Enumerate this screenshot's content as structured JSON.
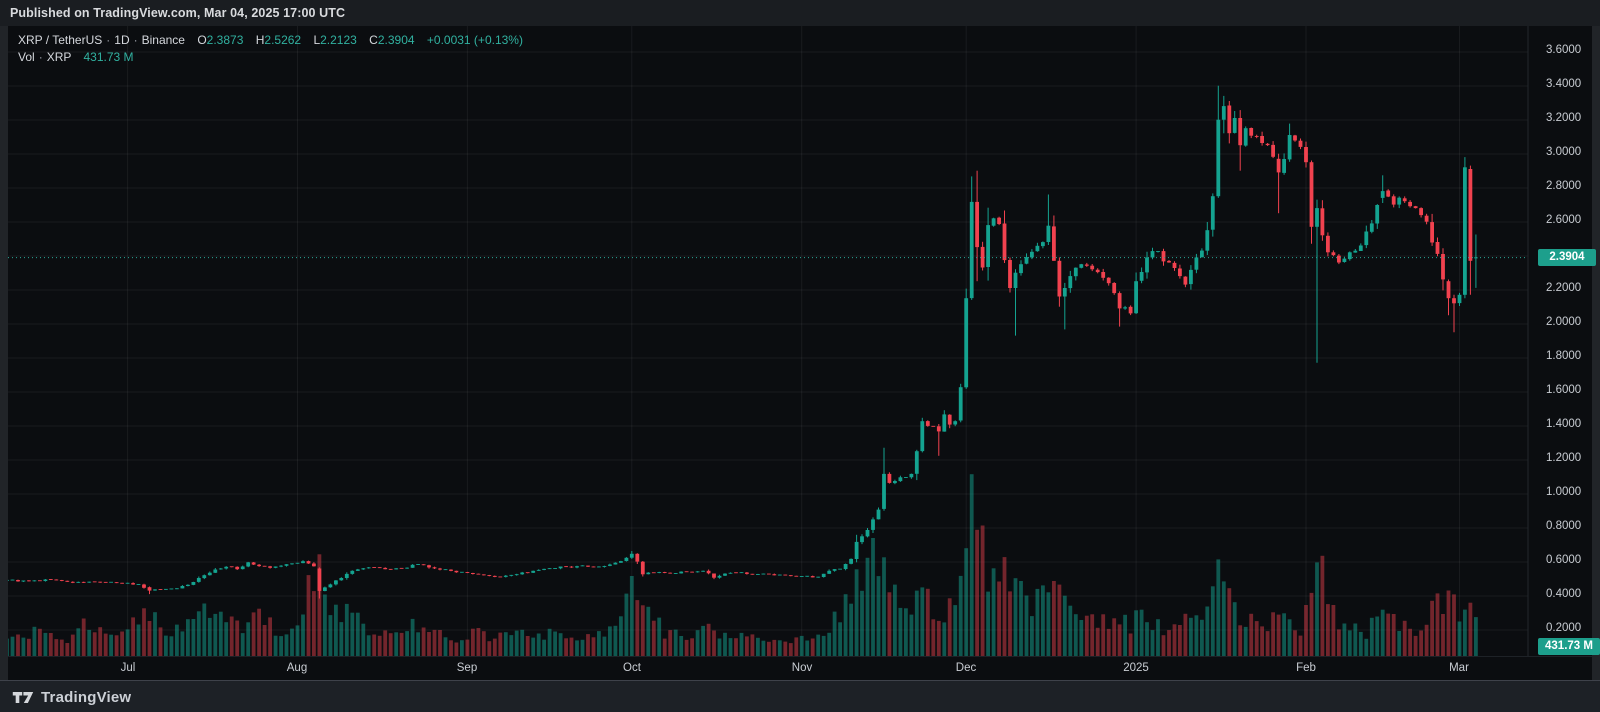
{
  "page": {
    "published_text": "Published on TradingView.com, Mar 04, 2025 17:00 UTC",
    "footer_brand": "TradingView"
  },
  "legend": {
    "line1": {
      "symbol": "XRP / TetherUS",
      "sep1": "·",
      "interval": "1D",
      "sep2": "·",
      "exchange": "Binance",
      "o_l": "O",
      "o_v": "2.3873",
      "h_l": "H",
      "h_v": "2.5262",
      "l_l": "L",
      "l_v": "2.2123",
      "c_l": "C",
      "c_v": "2.3904",
      "change": "+0.0031 (+0.13%)"
    },
    "line2": {
      "label": "Vol",
      "sep": "·",
      "ticker": "XRP",
      "value": "431.73 M"
    }
  },
  "axes": {
    "price_badge": "2.3904",
    "volume_badge": "431.73 M"
  },
  "colors": {
    "up": "#14a390",
    "down": "#f1424f",
    "vol_up": "rgba(20,163,144,0.5)",
    "vol_down": "rgba(241,66,79,0.45)",
    "accent_teal": "#1d9f8c",
    "dotted_line": "#2aa896",
    "grid": "rgba(255,255,255,0.06)",
    "axis_border": "#23272c",
    "axis_text": "#c9cdd3",
    "chart_bg": "#0b0d10"
  },
  "chart_data": {
    "type": "candlestick",
    "title": "XRP / TetherUS · 1D · Binance",
    "x_range": [
      "Jun 2024",
      "Mar 04 2025"
    ],
    "price_axis_visible_range": [
      0.15,
      3.72
    ],
    "grid_levels": [
      3.6,
      3.4,
      3.2,
      3.0,
      2.8,
      2.6,
      2.4,
      2.2,
      2.0,
      1.8,
      1.6,
      1.4,
      1.2,
      1.0,
      0.8,
      0.6,
      0.4,
      0.2
    ],
    "price_ticks": [
      {
        "v": 3.6,
        "label": "3.6000"
      },
      {
        "v": 3.4,
        "label": "3.4000"
      },
      {
        "v": 3.2,
        "label": "3.2000"
      },
      {
        "v": 3.0,
        "label": "3.0000"
      },
      {
        "v": 2.8,
        "label": "2.8000"
      },
      {
        "v": 2.6,
        "label": "2.6000"
      },
      {
        "v": 2.2,
        "label": "2.2000"
      },
      {
        "v": 2.0,
        "label": "2.0000"
      },
      {
        "v": 1.8,
        "label": "1.8000"
      },
      {
        "v": 1.6,
        "label": "1.6000"
      },
      {
        "v": 1.4,
        "label": "1.4000"
      },
      {
        "v": 1.2,
        "label": "1.2000"
      },
      {
        "v": 1.0,
        "label": "1.0000"
      },
      {
        "v": 0.8,
        "label": "0.8000"
      },
      {
        "v": 0.6,
        "label": "0.6000"
      },
      {
        "v": 0.4,
        "label": "0.4000"
      },
      {
        "v": 0.2,
        "label": "0.2000"
      }
    ],
    "time_ticks": [
      {
        "label": "Jul",
        "day": 22
      },
      {
        "label": "Aug",
        "day": 53
      },
      {
        "label": "Sep",
        "day": 84
      },
      {
        "label": "Oct",
        "day": 114
      },
      {
        "label": "Nov",
        "day": 145
      },
      {
        "label": "Dec",
        "day": 175
      },
      {
        "label": "2025",
        "day": 206
      },
      {
        "label": "Feb",
        "day": 237
      },
      {
        "label": "Mar",
        "day": 265
      }
    ],
    "days": 269,
    "seed": 9,
    "current_price": 2.3904,
    "current_volume": "431.73 M",
    "last_candle": {
      "o": 2.3873,
      "h": 2.5262,
      "l": 2.2123,
      "c": 2.3904,
      "change": "+0.0031",
      "change_pct": "+0.13%"
    },
    "close_anchors": [
      [
        0,
        0.493
      ],
      [
        4,
        0.487
      ],
      [
        8,
        0.496
      ],
      [
        12,
        0.478
      ],
      [
        16,
        0.483
      ],
      [
        20,
        0.476
      ],
      [
        24,
        0.468
      ],
      [
        26,
        0.432
      ],
      [
        28,
        0.438
      ],
      [
        31,
        0.444
      ],
      [
        33,
        0.466
      ],
      [
        35,
        0.506
      ],
      [
        38,
        0.556
      ],
      [
        40,
        0.572
      ],
      [
        42,
        0.558
      ],
      [
        44,
        0.598
      ],
      [
        46,
        0.576
      ],
      [
        48,
        0.566
      ],
      [
        50,
        0.578
      ],
      [
        52,
        0.592
      ],
      [
        54,
        0.605
      ],
      [
        56,
        0.575
      ],
      [
        57,
        0.43
      ],
      [
        59,
        0.468
      ],
      [
        61,
        0.506
      ],
      [
        63,
        0.548
      ],
      [
        66,
        0.568
      ],
      [
        69,
        0.558
      ],
      [
        72,
        0.562
      ],
      [
        75,
        0.586
      ],
      [
        78,
        0.562
      ],
      [
        81,
        0.548
      ],
      [
        84,
        0.536
      ],
      [
        87,
        0.522
      ],
      [
        90,
        0.512
      ],
      [
        93,
        0.528
      ],
      [
        96,
        0.548
      ],
      [
        99,
        0.562
      ],
      [
        102,
        0.572
      ],
      [
        105,
        0.578
      ],
      [
        108,
        0.572
      ],
      [
        111,
        0.596
      ],
      [
        113,
        0.625
      ],
      [
        114,
        0.648
      ],
      [
        115,
        0.602
      ],
      [
        116,
        0.528
      ],
      [
        118,
        0.536
      ],
      [
        121,
        0.532
      ],
      [
        124,
        0.542
      ],
      [
        127,
        0.548
      ],
      [
        129,
        0.508
      ],
      [
        131,
        0.532
      ],
      [
        134,
        0.538
      ],
      [
        137,
        0.528
      ],
      [
        140,
        0.522
      ],
      [
        143,
        0.518
      ],
      [
        145,
        0.515
      ],
      [
        148,
        0.512
      ],
      [
        150,
        0.548
      ],
      [
        152,
        0.558
      ],
      [
        154,
        0.618
      ],
      [
        155,
        0.718
      ],
      [
        157,
        0.788
      ],
      [
        159,
        0.908
      ],
      [
        160,
        1.118
      ],
      [
        161,
        1.065
      ],
      [
        163,
        1.098
      ],
      [
        165,
        1.118
      ],
      [
        166,
        1.252
      ],
      [
        167,
        1.428
      ],
      [
        169,
        1.398
      ],
      [
        170,
        1.368
      ],
      [
        171,
        1.468
      ],
      [
        172,
        1.408
      ],
      [
        173,
        1.428
      ],
      [
        174,
        1.628
      ],
      [
        175,
        2.152
      ],
      [
        176,
        2.718
      ],
      [
        177,
        2.452
      ],
      [
        178,
        2.332
      ],
      [
        179,
        2.582
      ],
      [
        180,
        2.622
      ],
      [
        181,
        2.588
      ],
      [
        183,
        2.212
      ],
      [
        184,
        2.302
      ],
      [
        185,
        2.352
      ],
      [
        187,
        2.425
      ],
      [
        189,
        2.482
      ],
      [
        190,
        2.578
      ],
      [
        191,
        2.372
      ],
      [
        192,
        2.162
      ],
      [
        193,
        2.212
      ],
      [
        194,
        2.282
      ],
      [
        196,
        2.352
      ],
      [
        198,
        2.322
      ],
      [
        200,
        2.272
      ],
      [
        202,
        2.182
      ],
      [
        203,
        2.092
      ],
      [
        205,
        2.062
      ],
      [
        206,
        2.252
      ],
      [
        208,
        2.392
      ],
      [
        210,
        2.428
      ],
      [
        212,
        2.362
      ],
      [
        214,
        2.282
      ],
      [
        215,
        2.232
      ],
      [
        216,
        2.318
      ],
      [
        218,
        2.432
      ],
      [
        219,
        2.552
      ],
      [
        220,
        2.752
      ],
      [
        221,
        3.202
      ],
      [
        222,
        3.282
      ],
      [
        223,
        3.122
      ],
      [
        224,
        3.212
      ],
      [
        225,
        3.052
      ],
      [
        226,
        3.152
      ],
      [
        228,
        3.102
      ],
      [
        230,
        3.052
      ],
      [
        232,
        2.892
      ],
      [
        234,
        3.112
      ],
      [
        236,
        3.042
      ],
      [
        237,
        2.952
      ],
      [
        238,
        2.572
      ],
      [
        239,
        2.682
      ],
      [
        240,
        2.522
      ],
      [
        241,
        2.422
      ],
      [
        243,
        2.362
      ],
      [
        245,
        2.422
      ],
      [
        247,
        2.462
      ],
      [
        249,
        2.592
      ],
      [
        251,
        2.782
      ],
      [
        253,
        2.702
      ],
      [
        255,
        2.722
      ],
      [
        257,
        2.682
      ],
      [
        259,
        2.602
      ],
      [
        261,
        2.412
      ],
      [
        262,
        2.262
      ],
      [
        263,
        2.152
      ],
      [
        264,
        2.122
      ],
      [
        265,
        2.172
      ],
      [
        266,
        2.922
      ],
      [
        267,
        2.372
      ],
      [
        268,
        2.3904
      ]
    ],
    "explicit_candles": {
      "26": [
        0.452,
        0.456,
        0.411,
        0.432
      ],
      "57": [
        0.562,
        0.568,
        0.385,
        0.43
      ],
      "114": [
        0.625,
        0.665,
        0.618,
        0.648
      ],
      "115": [
        0.648,
        0.652,
        0.588,
        0.602
      ],
      "116": [
        0.602,
        0.606,
        0.515,
        0.528
      ],
      "160": [
        0.912,
        1.272,
        0.902,
        1.118
      ],
      "167": [
        1.252,
        1.448,
        1.245,
        1.428
      ],
      "170": [
        1.398,
        1.412,
        1.225,
        1.368
      ],
      "174": [
        1.432,
        1.648,
        1.422,
        1.628
      ],
      "175": [
        1.628,
        2.208,
        1.618,
        2.152
      ],
      "176": [
        2.152,
        2.868,
        2.142,
        2.718
      ],
      "177": [
        2.718,
        2.902,
        2.252,
        2.452
      ],
      "184": [
        2.212,
        2.322,
        1.932,
        2.302
      ],
      "190": [
        2.482,
        2.762,
        2.465,
        2.578
      ],
      "192": [
        2.372,
        2.392,
        2.102,
        2.162
      ],
      "193": [
        2.162,
        2.242,
        1.968,
        2.212
      ],
      "203": [
        2.182,
        2.192,
        1.985,
        2.092
      ],
      "221": [
        2.752,
        3.402,
        2.742,
        3.202
      ],
      "222": [
        3.202,
        3.342,
        3.122,
        3.282
      ],
      "225": [
        3.212,
        3.258,
        2.902,
        3.052
      ],
      "232": [
        2.972,
        3.002,
        2.652,
        2.892
      ],
      "238": [
        2.952,
        2.962,
        2.472,
        2.572
      ],
      "239": [
        2.572,
        2.732,
        1.772,
        2.682
      ],
      "251": [
        2.742,
        2.875,
        2.712,
        2.782
      ],
      "263": [
        2.252,
        2.262,
        2.052,
        2.152
      ],
      "264": [
        2.152,
        2.172,
        1.952,
        2.122
      ],
      "266": [
        2.172,
        2.982,
        2.152,
        2.922
      ],
      "267": [
        2.912,
        2.932,
        2.172,
        2.372
      ],
      "268": [
        2.3873,
        2.5262,
        2.2123,
        2.3904
      ]
    },
    "volume_rel_anchors": [
      [
        0,
        0.1
      ],
      [
        5,
        0.14
      ],
      [
        10,
        0.09
      ],
      [
        15,
        0.2
      ],
      [
        20,
        0.12
      ],
      [
        26,
        0.3
      ],
      [
        30,
        0.12
      ],
      [
        35,
        0.26
      ],
      [
        38,
        0.3
      ],
      [
        42,
        0.17
      ],
      [
        46,
        0.26
      ],
      [
        50,
        0.14
      ],
      [
        53,
        0.19
      ],
      [
        57,
        0.58
      ],
      [
        59,
        0.34
      ],
      [
        63,
        0.24
      ],
      [
        67,
        0.15
      ],
      [
        70,
        0.11
      ],
      [
        74,
        0.2
      ],
      [
        78,
        0.13
      ],
      [
        82,
        0.1
      ],
      [
        86,
        0.14
      ],
      [
        90,
        0.11
      ],
      [
        95,
        0.15
      ],
      [
        99,
        0.13
      ],
      [
        103,
        0.1
      ],
      [
        107,
        0.12
      ],
      [
        111,
        0.2
      ],
      [
        114,
        0.42
      ],
      [
        116,
        0.38
      ],
      [
        120,
        0.14
      ],
      [
        124,
        0.11
      ],
      [
        128,
        0.16
      ],
      [
        132,
        0.1
      ],
      [
        136,
        0.12
      ],
      [
        140,
        0.09
      ],
      [
        144,
        0.11
      ],
      [
        148,
        0.12
      ],
      [
        152,
        0.25
      ],
      [
        155,
        0.45
      ],
      [
        157,
        0.52
      ],
      [
        159,
        0.66
      ],
      [
        160,
        0.55
      ],
      [
        162,
        0.36
      ],
      [
        164,
        0.3
      ],
      [
        166,
        0.42
      ],
      [
        167,
        0.48
      ],
      [
        169,
        0.3
      ],
      [
        171,
        0.26
      ],
      [
        173,
        0.32
      ],
      [
        175,
        0.62
      ],
      [
        176,
        1.0
      ],
      [
        177,
        0.86
      ],
      [
        179,
        0.5
      ],
      [
        181,
        0.38
      ],
      [
        183,
        0.56
      ],
      [
        185,
        0.4
      ],
      [
        187,
        0.3
      ],
      [
        190,
        0.36
      ],
      [
        192,
        0.58
      ],
      [
        194,
        0.36
      ],
      [
        196,
        0.26
      ],
      [
        199,
        0.2
      ],
      [
        202,
        0.24
      ],
      [
        205,
        0.18
      ],
      [
        207,
        0.26
      ],
      [
        210,
        0.19
      ],
      [
        213,
        0.16
      ],
      [
        216,
        0.22
      ],
      [
        219,
        0.36
      ],
      [
        221,
        0.46
      ],
      [
        222,
        0.4
      ],
      [
        224,
        0.28
      ],
      [
        226,
        0.22
      ],
      [
        229,
        0.17
      ],
      [
        232,
        0.3
      ],
      [
        234,
        0.18
      ],
      [
        236,
        0.16
      ],
      [
        237,
        0.25
      ],
      [
        238,
        0.48
      ],
      [
        239,
        0.72
      ],
      [
        241,
        0.36
      ],
      [
        243,
        0.22
      ],
      [
        245,
        0.16
      ],
      [
        248,
        0.14
      ],
      [
        250,
        0.22
      ],
      [
        252,
        0.26
      ],
      [
        254,
        0.18
      ],
      [
        256,
        0.15
      ],
      [
        258,
        0.18
      ],
      [
        260,
        0.26
      ],
      [
        262,
        0.35
      ],
      [
        264,
        0.3
      ],
      [
        265,
        0.18
      ],
      [
        266,
        0.34
      ],
      [
        267,
        0.36
      ],
      [
        268,
        0.26
      ]
    ]
  }
}
